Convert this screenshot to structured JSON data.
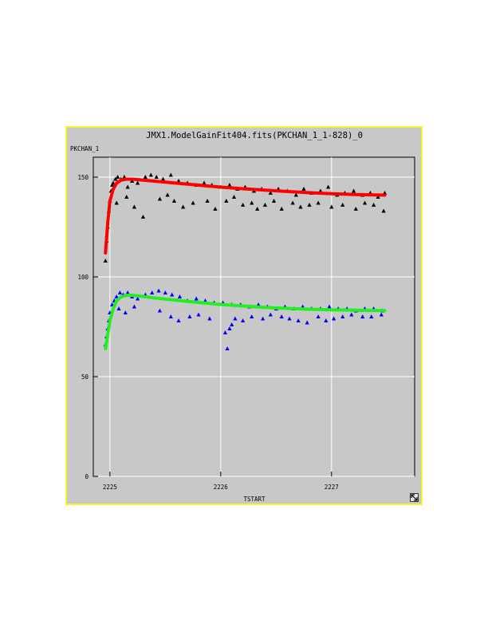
{
  "colors": {
    "window_border": "#f5f52a",
    "background": "#c8c8c8",
    "grid": "#ffffff",
    "axis": "#000000",
    "series_1": "#000000",
    "fit_1": "#ff0000",
    "series_2": "#0000ff",
    "fit_2": "#22ee22"
  },
  "icons": {
    "resize": "resize-arrow-icon"
  },
  "chart_data": {
    "type": "scatter",
    "title": "JMX1.ModelGainFit404.fits(PKCHAN_1_1-828)_0",
    "xlabel": "TSTART",
    "ylabel": "PKCHAN_1",
    "xlim": [
      2224.85,
      2227.75
    ],
    "ylim": [
      0,
      160
    ],
    "xticks": [
      "2225",
      "2226",
      "2227"
    ],
    "yticks": [
      "0",
      "50",
      "100",
      "150"
    ],
    "grid": true,
    "series": [
      {
        "kind": "points",
        "marker": "triangle",
        "color": "#000000",
        "x": [
          2224.96,
          2224.97,
          2224.98,
          2224.99,
          2225.0,
          2225.01,
          2225.02,
          2225.03,
          2225.05,
          2225.07,
          2225.1,
          2225.13,
          2225.16,
          2225.2,
          2225.25,
          2225.32,
          2225.37,
          2225.42,
          2225.48,
          2225.55,
          2225.62,
          2225.7,
          2225.78,
          2225.85,
          2225.92,
          2226.0,
          2226.08,
          2226.15,
          2226.22,
          2226.3,
          2226.37,
          2226.45,
          2226.52,
          2226.6,
          2226.68,
          2226.75,
          2226.82,
          2226.9,
          2226.97,
          2227.05,
          2227.12,
          2227.2,
          2227.28,
          2227.35,
          2227.42,
          2227.48
        ],
        "y": [
          108,
          118,
          125,
          133,
          138,
          143,
          146,
          147,
          149,
          150,
          149,
          150,
          145,
          148,
          147,
          150,
          151,
          150,
          149,
          151,
          148,
          147,
          146,
          147,
          146,
          145,
          146,
          144,
          145,
          143,
          144,
          142,
          144,
          143,
          141,
          144,
          142,
          143,
          145,
          141,
          142,
          143,
          141,
          142,
          140,
          142
        ]
      },
      {
        "kind": "points",
        "marker": "triangle",
        "color": "#000000",
        "x": [
          2225.06,
          2225.15,
          2225.22,
          2225.3,
          2225.45,
          2225.52,
          2225.58,
          2225.66,
          2225.75,
          2225.88,
          2225.95,
          2226.05,
          2226.12,
          2226.2,
          2226.28,
          2226.33,
          2226.4,
          2226.48,
          2226.55,
          2226.65,
          2226.72,
          2226.8,
          2226.88,
          2227.0,
          2227.1,
          2227.22,
          2227.3,
          2227.38,
          2227.47
        ],
        "y": [
          137,
          140,
          135,
          130,
          139,
          141,
          138,
          135,
          137,
          138,
          134,
          138,
          140,
          136,
          137,
          134,
          136,
          138,
          134,
          137,
          135,
          136,
          137,
          135,
          136,
          134,
          137,
          136,
          133
        ]
      },
      {
        "kind": "line",
        "color": "#ff0000",
        "x": [
          2224.96,
          2224.98,
          2225.0,
          2225.03,
          2225.06,
          2225.1,
          2225.15,
          2225.2,
          2225.3,
          2225.4,
          2225.6,
          2225.8,
          2226.0,
          2226.2,
          2226.4,
          2226.6,
          2226.8,
          2227.0,
          2227.2,
          2227.48
        ],
        "y": [
          112,
          127,
          138,
          144,
          147,
          148.5,
          149,
          149,
          148.5,
          148,
          147,
          146,
          145,
          144.2,
          143.5,
          142.8,
          142.2,
          141.7,
          141.3,
          141
        ]
      },
      {
        "kind": "points",
        "marker": "triangle",
        "color": "#0000ff",
        "x": [
          2224.96,
          2224.97,
          2224.98,
          2224.99,
          2225.0,
          2225.02,
          2225.04,
          2225.06,
          2225.09,
          2225.12,
          2225.16,
          2225.2,
          2225.25,
          2225.32,
          2225.38,
          2225.44,
          2225.5,
          2225.56,
          2225.63,
          2225.7,
          2225.78,
          2225.86,
          2225.94,
          2226.02,
          2226.1,
          2226.18,
          2226.26,
          2226.34,
          2226.42,
          2226.5,
          2226.58,
          2226.66,
          2226.74,
          2226.82,
          2226.9,
          2226.98,
          2227.06,
          2227.14,
          2227.22,
          2227.3,
          2227.38,
          2227.46
        ],
        "y": [
          66,
          70,
          74,
          78,
          82,
          86,
          88,
          90,
          92,
          91,
          92,
          90,
          89,
          91,
          92,
          93,
          92,
          91,
          90,
          88,
          89,
          88,
          87,
          87,
          86,
          86,
          85,
          86,
          85,
          84,
          85,
          84,
          85,
          84,
          84,
          85,
          84,
          84,
          83,
          84,
          84,
          83
        ]
      },
      {
        "kind": "points",
        "marker": "triangle",
        "color": "#0000ff",
        "x": [
          2225.08,
          2225.14,
          2225.22,
          2225.45,
          2225.55,
          2225.62,
          2225.72,
          2225.8,
          2225.9,
          2226.04,
          2226.06,
          2226.08,
          2226.1,
          2226.13,
          2226.2,
          2226.28,
          2226.38,
          2226.45,
          2226.55,
          2226.62,
          2226.7,
          2226.78,
          2226.88,
          2226.95,
          2227.02,
          2227.1,
          2227.18,
          2227.28,
          2227.36,
          2227.45
        ],
        "y": [
          84,
          82,
          85,
          83,
          80,
          78,
          80,
          81,
          79,
          72,
          64,
          74,
          76,
          79,
          78,
          80,
          79,
          81,
          80,
          79,
          78,
          77,
          80,
          78,
          79,
          80,
          81,
          80,
          80,
          81
        ]
      },
      {
        "kind": "line",
        "color": "#22ee22",
        "x": [
          2224.96,
          2224.98,
          2225.0,
          2225.03,
          2225.06,
          2225.1,
          2225.15,
          2225.2,
          2225.3,
          2225.4,
          2225.6,
          2225.8,
          2226.0,
          2226.2,
          2226.4,
          2226.6,
          2226.8,
          2227.0,
          2227.2,
          2227.48
        ],
        "y": [
          64,
          71,
          78,
          84,
          88,
          90,
          90.8,
          90.8,
          90.2,
          89.5,
          88.3,
          87.2,
          86.2,
          85.4,
          84.7,
          84.2,
          83.8,
          83.5,
          83.3,
          83.1
        ]
      }
    ]
  }
}
